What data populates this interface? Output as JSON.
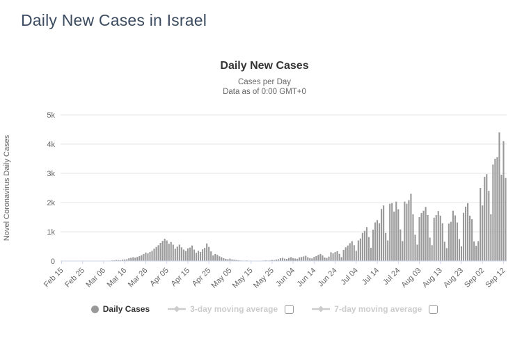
{
  "page": {
    "title": "Daily New Cases in Israel"
  },
  "chart": {
    "title": "Daily New Cases",
    "subtitle1": "Cases per Day",
    "subtitle2": "Data as of 0:00 GMT+0",
    "legend": {
      "daily_cases_label": "Daily Cases",
      "ma3_label": "3-day moving average",
      "ma7_label": "7-day moving average",
      "ma3_checked": false,
      "ma7_checked": false
    },
    "colors": {
      "bar": "#999999",
      "grid": "#e6e6e6",
      "axis_line": "#ccd6eb",
      "tick_text": "#666666",
      "disabled_legend": "#cccccc",
      "title_text": "#333333",
      "page_title": "#3b4c60"
    }
  },
  "chart_data": {
    "type": "bar",
    "title": "Daily New Cases",
    "subtitle": "Cases per Day — Data as of 0:00 GMT+0",
    "series_name": "Daily Cases",
    "xlabel": "",
    "ylabel": "Novel Coronavirus Daily Cases",
    "ylim": [
      0,
      5000
    ],
    "ytick_values": [
      0,
      1000,
      2000,
      3000,
      4000,
      5000
    ],
    "ytick_labels": [
      "0",
      "1k",
      "2k",
      "3k",
      "4k",
      "5k"
    ],
    "x_start": "Feb 15",
    "x_end": "Sep 13",
    "xtick_every_n_bars": 10,
    "xtick_labels": [
      "Feb 15",
      "Feb 25",
      "Mar 06",
      "Mar 16",
      "Mar 26",
      "Apr 05",
      "Apr 15",
      "Apr 25",
      "May 05",
      "May 15",
      "May 25",
      "Jun 04",
      "Jun 14",
      "Jun 24",
      "Jul 04",
      "Jul 14",
      "Jul 24",
      "Aug 03",
      "Aug 13",
      "Aug 23",
      "Sep 02",
      "Sep 12"
    ],
    "grid": true,
    "legend_position": "bottom",
    "values": [
      0,
      0,
      0,
      0,
      0,
      1,
      1,
      0,
      1,
      0,
      0,
      0,
      2,
      1,
      2,
      3,
      2,
      3,
      4,
      4,
      5,
      5,
      8,
      14,
      20,
      24,
      35,
      31,
      27,
      49,
      54,
      60,
      93,
      110,
      130,
      112,
      140,
      165,
      200,
      240,
      290,
      260,
      310,
      350,
      420,
      480,
      540,
      620,
      690,
      760,
      700,
      590,
      650,
      560,
      420,
      490,
      560,
      470,
      390,
      340,
      430,
      460,
      530,
      390,
      280,
      350,
      310,
      400,
      450,
      600,
      480,
      330,
      190,
      240,
      210,
      160,
      130,
      95,
      75,
      60,
      80,
      55,
      45,
      36,
      26,
      18,
      15,
      12,
      20,
      10,
      8,
      6,
      5,
      10,
      8,
      12,
      16,
      25,
      14,
      20,
      35,
      30,
      50,
      60,
      95,
      110,
      80,
      70,
      105,
      130,
      100,
      85,
      75,
      125,
      135,
      155,
      180,
      130,
      100,
      90,
      140,
      170,
      210,
      240,
      190,
      120,
      105,
      150,
      300,
      260,
      305,
      335,
      245,
      130,
      380,
      470,
      530,
      610,
      680,
      540,
      350,
      700,
      770,
      960,
      1030,
      1160,
      820,
      450,
      1070,
      1320,
      1400,
      1290,
      1780,
      1900,
      960,
      700,
      1960,
      1980,
      1690,
      2030,
      1770,
      1080,
      680,
      2030,
      1960,
      2080,
      2300,
      1600,
      900,
      560,
      1500,
      1640,
      1720,
      1850,
      1570,
      800,
      540,
      1480,
      1570,
      1710,
      1550,
      1290,
      660,
      440,
      1280,
      1340,
      1720,
      1560,
      1320,
      750,
      500,
      1650,
      1860,
      1980,
      1550,
      1430,
      670,
      520,
      680,
      2500,
      1900,
      2880,
      2970,
      2400,
      1600,
      3300,
      3500,
      3550,
      4400,
      2950,
      4100,
      2840
    ]
  }
}
